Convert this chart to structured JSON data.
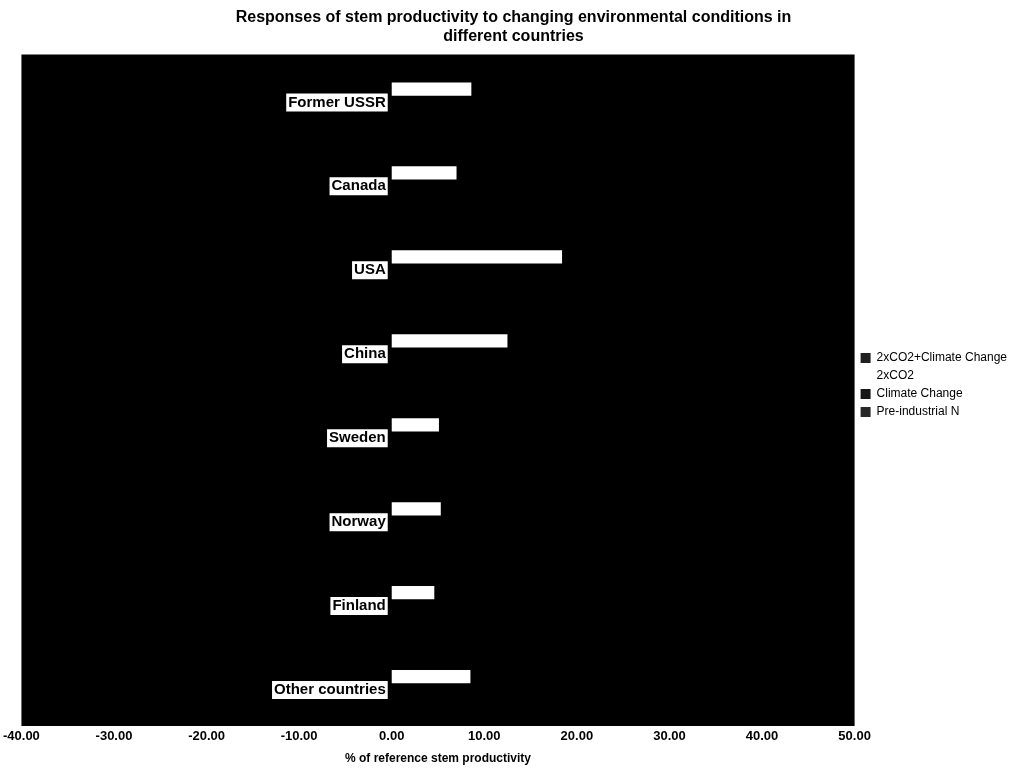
{
  "chart_data": {
    "type": "bar",
    "orientation": "horizontal",
    "title": "Responses of stem productivity to changing environmental conditions in different countries",
    "xlabel": "% of reference stem productivity",
    "categories": [
      "Former USSR",
      "Canada",
      "USA",
      "China",
      "Sweden",
      "Norway",
      "Finland",
      "Other countries"
    ],
    "series": [
      {
        "name": "2xCO2+Climate Change",
        "color": "#202020",
        "values": [
          null,
          null,
          null,
          null,
          null,
          null,
          null,
          null
        ]
      },
      {
        "name": "2xCO2",
        "color": "#ffffff",
        "values": [
          8.6,
          7.0,
          18.4,
          12.5,
          5.1,
          5.3,
          4.6,
          8.5
        ]
      },
      {
        "name": "Climate Change",
        "color": "#181818",
        "values": [
          null,
          null,
          null,
          null,
          null,
          null,
          null,
          null
        ]
      },
      {
        "name": "Pre-industrial N",
        "color": "#282828",
        "values": [
          null,
          null,
          null,
          null,
          null,
          null,
          null,
          null
        ]
      }
    ],
    "xlim": [
      -40,
      50
    ],
    "xticks": [
      {
        "value": -40,
        "label": "-40.00"
      },
      {
        "value": -30,
        "label": "-30.00"
      },
      {
        "value": -20,
        "label": "-20.00"
      },
      {
        "value": -10,
        "label": "-10.00"
      },
      {
        "value": 0,
        "label": "0.00"
      },
      {
        "value": 10,
        "label": "10.00"
      },
      {
        "value": 20,
        "label": "20.00"
      },
      {
        "value": 30,
        "label": "30.00"
      },
      {
        "value": 40,
        "label": "40.00"
      },
      {
        "value": 50,
        "label": "50.00"
      }
    ],
    "grid": false,
    "legend": "right"
  }
}
